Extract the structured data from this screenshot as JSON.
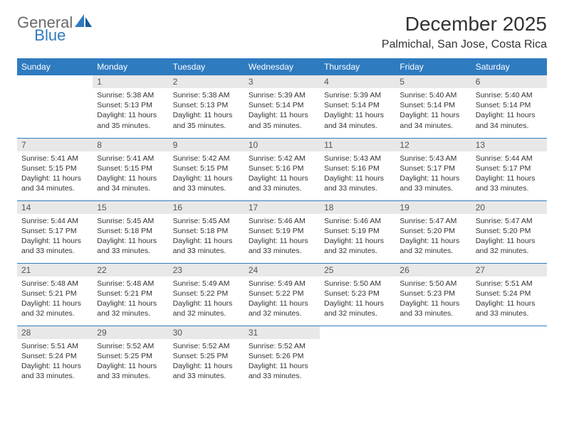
{
  "logo": {
    "part1": "General",
    "part2": "Blue"
  },
  "title": "December 2025",
  "location": "Palmichal, San Jose, Costa Rica",
  "colors": {
    "header_bg": "#2f7bc0",
    "header_text": "#ffffff",
    "daynum_bg": "#e8e8e8",
    "row_border": "#2f7bc0",
    "text": "#333333",
    "logo_gray": "#6a6a6a",
    "logo_blue": "#2f7bc0"
  },
  "weekdays": [
    "Sunday",
    "Monday",
    "Tuesday",
    "Wednesday",
    "Thursday",
    "Friday",
    "Saturday"
  ],
  "weeks": [
    [
      {
        "empty": true
      },
      {
        "num": "1",
        "sunrise": "5:38 AM",
        "sunset": "5:13 PM",
        "daylight": "11 hours and 35 minutes."
      },
      {
        "num": "2",
        "sunrise": "5:38 AM",
        "sunset": "5:13 PM",
        "daylight": "11 hours and 35 minutes."
      },
      {
        "num": "3",
        "sunrise": "5:39 AM",
        "sunset": "5:14 PM",
        "daylight": "11 hours and 35 minutes."
      },
      {
        "num": "4",
        "sunrise": "5:39 AM",
        "sunset": "5:14 PM",
        "daylight": "11 hours and 34 minutes."
      },
      {
        "num": "5",
        "sunrise": "5:40 AM",
        "sunset": "5:14 PM",
        "daylight": "11 hours and 34 minutes."
      },
      {
        "num": "6",
        "sunrise": "5:40 AM",
        "sunset": "5:14 PM",
        "daylight": "11 hours and 34 minutes."
      }
    ],
    [
      {
        "num": "7",
        "sunrise": "5:41 AM",
        "sunset": "5:15 PM",
        "daylight": "11 hours and 34 minutes."
      },
      {
        "num": "8",
        "sunrise": "5:41 AM",
        "sunset": "5:15 PM",
        "daylight": "11 hours and 34 minutes."
      },
      {
        "num": "9",
        "sunrise": "5:42 AM",
        "sunset": "5:15 PM",
        "daylight": "11 hours and 33 minutes."
      },
      {
        "num": "10",
        "sunrise": "5:42 AM",
        "sunset": "5:16 PM",
        "daylight": "11 hours and 33 minutes."
      },
      {
        "num": "11",
        "sunrise": "5:43 AM",
        "sunset": "5:16 PM",
        "daylight": "11 hours and 33 minutes."
      },
      {
        "num": "12",
        "sunrise": "5:43 AM",
        "sunset": "5:17 PM",
        "daylight": "11 hours and 33 minutes."
      },
      {
        "num": "13",
        "sunrise": "5:44 AM",
        "sunset": "5:17 PM",
        "daylight": "11 hours and 33 minutes."
      }
    ],
    [
      {
        "num": "14",
        "sunrise": "5:44 AM",
        "sunset": "5:17 PM",
        "daylight": "11 hours and 33 minutes."
      },
      {
        "num": "15",
        "sunrise": "5:45 AM",
        "sunset": "5:18 PM",
        "daylight": "11 hours and 33 minutes."
      },
      {
        "num": "16",
        "sunrise": "5:45 AM",
        "sunset": "5:18 PM",
        "daylight": "11 hours and 33 minutes."
      },
      {
        "num": "17",
        "sunrise": "5:46 AM",
        "sunset": "5:19 PM",
        "daylight": "11 hours and 33 minutes."
      },
      {
        "num": "18",
        "sunrise": "5:46 AM",
        "sunset": "5:19 PM",
        "daylight": "11 hours and 32 minutes."
      },
      {
        "num": "19",
        "sunrise": "5:47 AM",
        "sunset": "5:20 PM",
        "daylight": "11 hours and 32 minutes."
      },
      {
        "num": "20",
        "sunrise": "5:47 AM",
        "sunset": "5:20 PM",
        "daylight": "11 hours and 32 minutes."
      }
    ],
    [
      {
        "num": "21",
        "sunrise": "5:48 AM",
        "sunset": "5:21 PM",
        "daylight": "11 hours and 32 minutes."
      },
      {
        "num": "22",
        "sunrise": "5:48 AM",
        "sunset": "5:21 PM",
        "daylight": "11 hours and 32 minutes."
      },
      {
        "num": "23",
        "sunrise": "5:49 AM",
        "sunset": "5:22 PM",
        "daylight": "11 hours and 32 minutes."
      },
      {
        "num": "24",
        "sunrise": "5:49 AM",
        "sunset": "5:22 PM",
        "daylight": "11 hours and 32 minutes."
      },
      {
        "num": "25",
        "sunrise": "5:50 AM",
        "sunset": "5:23 PM",
        "daylight": "11 hours and 32 minutes."
      },
      {
        "num": "26",
        "sunrise": "5:50 AM",
        "sunset": "5:23 PM",
        "daylight": "11 hours and 33 minutes."
      },
      {
        "num": "27",
        "sunrise": "5:51 AM",
        "sunset": "5:24 PM",
        "daylight": "11 hours and 33 minutes."
      }
    ],
    [
      {
        "num": "28",
        "sunrise": "5:51 AM",
        "sunset": "5:24 PM",
        "daylight": "11 hours and 33 minutes."
      },
      {
        "num": "29",
        "sunrise": "5:52 AM",
        "sunset": "5:25 PM",
        "daylight": "11 hours and 33 minutes."
      },
      {
        "num": "30",
        "sunrise": "5:52 AM",
        "sunset": "5:25 PM",
        "daylight": "11 hours and 33 minutes."
      },
      {
        "num": "31",
        "sunrise": "5:52 AM",
        "sunset": "5:26 PM",
        "daylight": "11 hours and 33 minutes."
      },
      {
        "empty": true
      },
      {
        "empty": true
      },
      {
        "empty": true
      }
    ]
  ],
  "labels": {
    "sunrise": "Sunrise: ",
    "sunset": "Sunset: ",
    "daylight": "Daylight: "
  }
}
